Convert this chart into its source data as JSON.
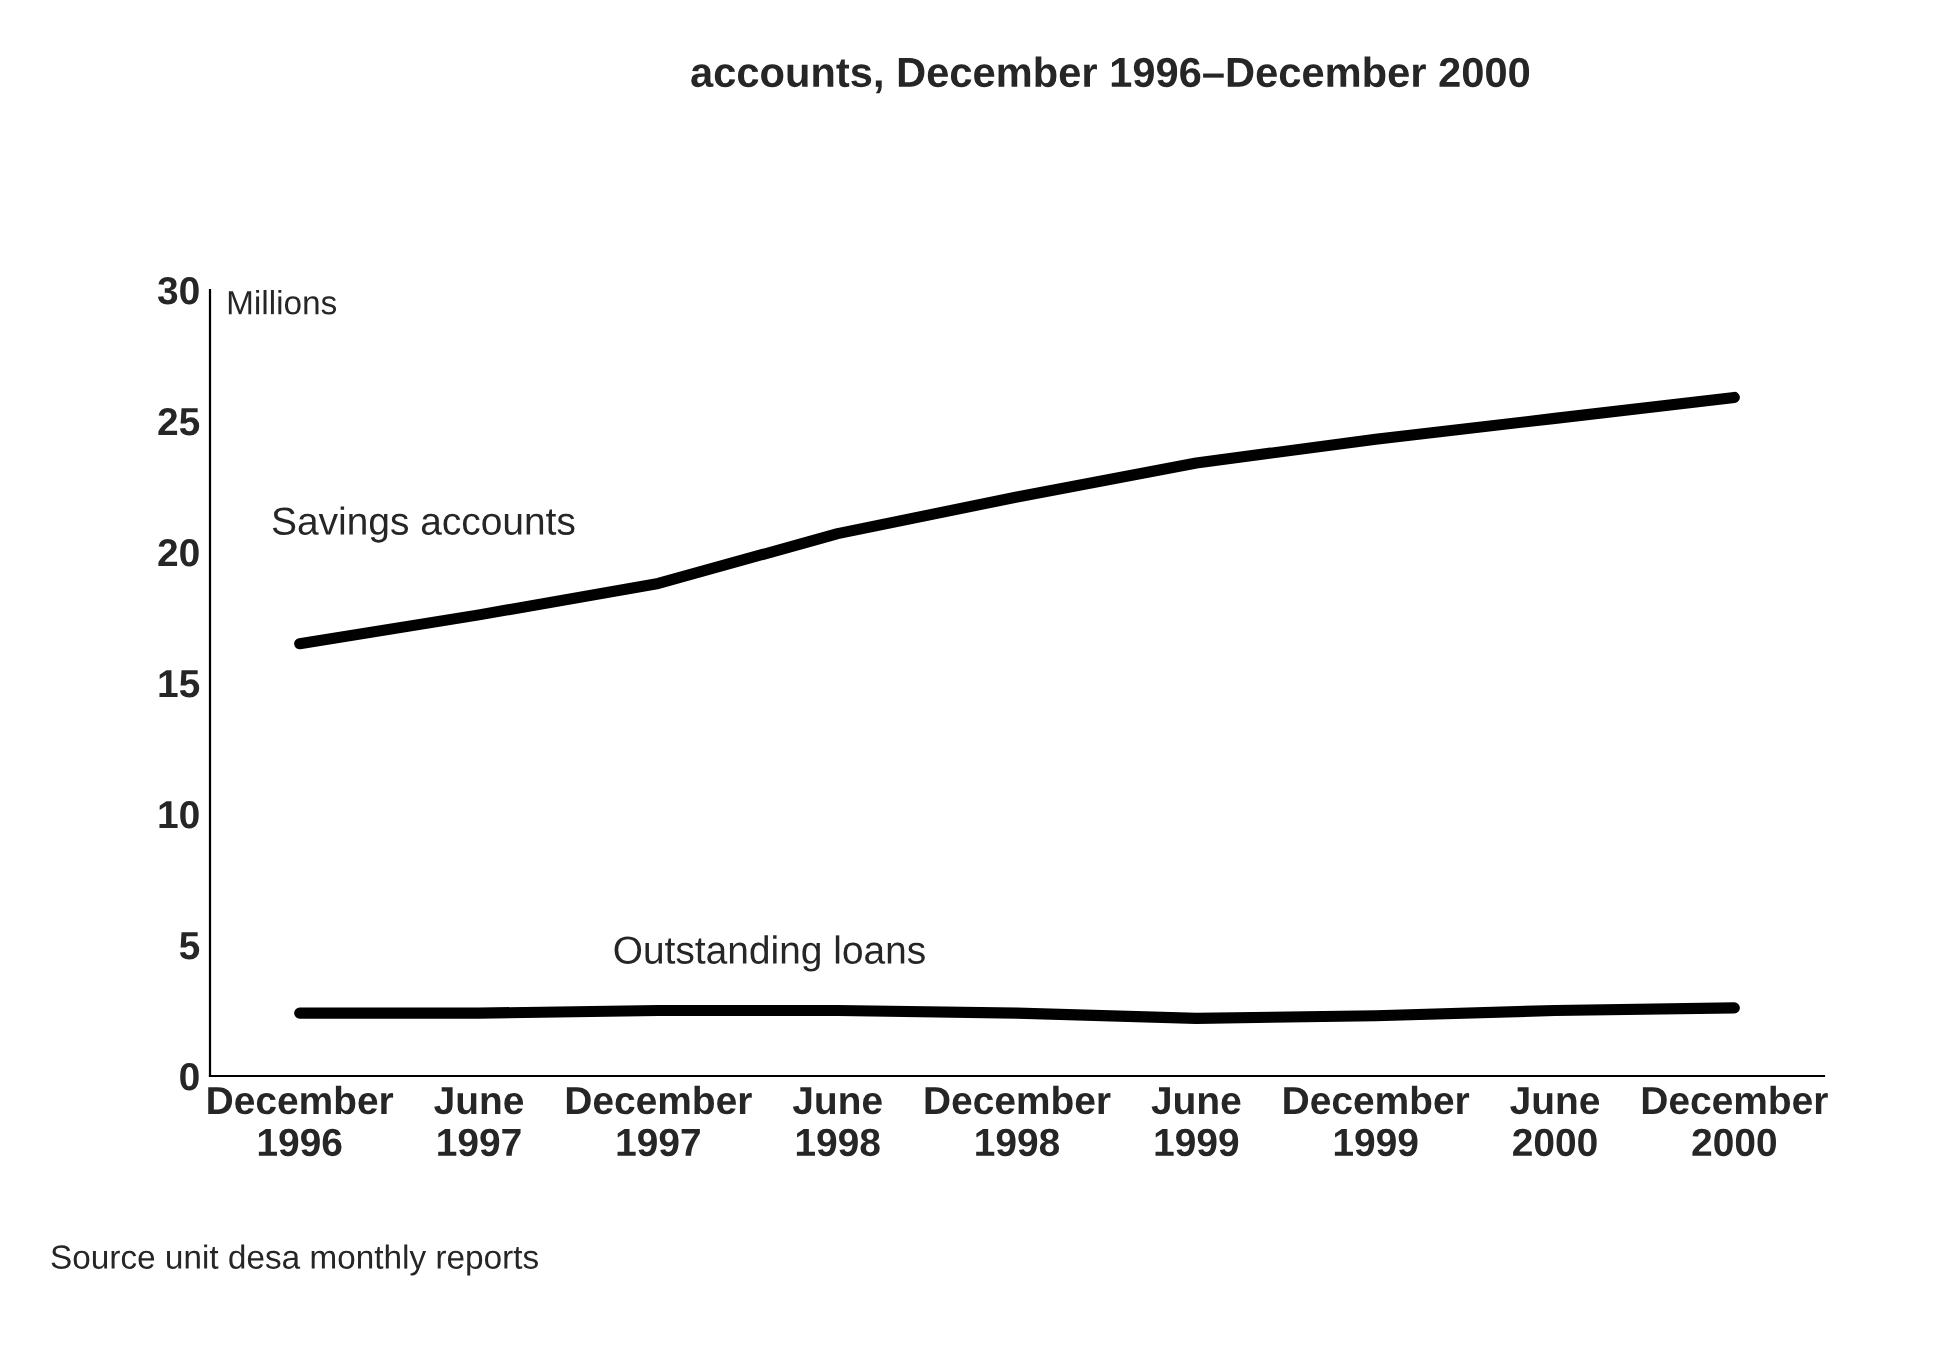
{
  "chart_data": {
    "type": "line",
    "title": "accounts, December 1996–December 2000",
    "ylabel": "Millions",
    "categories": [
      "December\n1996",
      "June\n1997",
      "December\n1997",
      "June\n1998",
      "December\n1998",
      "June\n1999",
      "December\n1999",
      "June\n2000",
      "December\n2000"
    ],
    "ylim": [
      0,
      30
    ],
    "yticks": [
      0,
      5,
      10,
      15,
      20,
      25,
      30
    ],
    "grid": false,
    "legend": false,
    "series": [
      {
        "name": "Savings accounts",
        "color": "#000000",
        "values": [
          16.5,
          17.6,
          18.8,
          20.7,
          22.1,
          23.4,
          24.3,
          25.1,
          25.9
        ]
      },
      {
        "name": "Outstanding loans",
        "color": "#000000",
        "values": [
          2.4,
          2.4,
          2.5,
          2.5,
          2.4,
          2.2,
          2.3,
          2.5,
          2.6
        ]
      }
    ],
    "annotations": [
      "Source unit desa monthly reports"
    ]
  }
}
